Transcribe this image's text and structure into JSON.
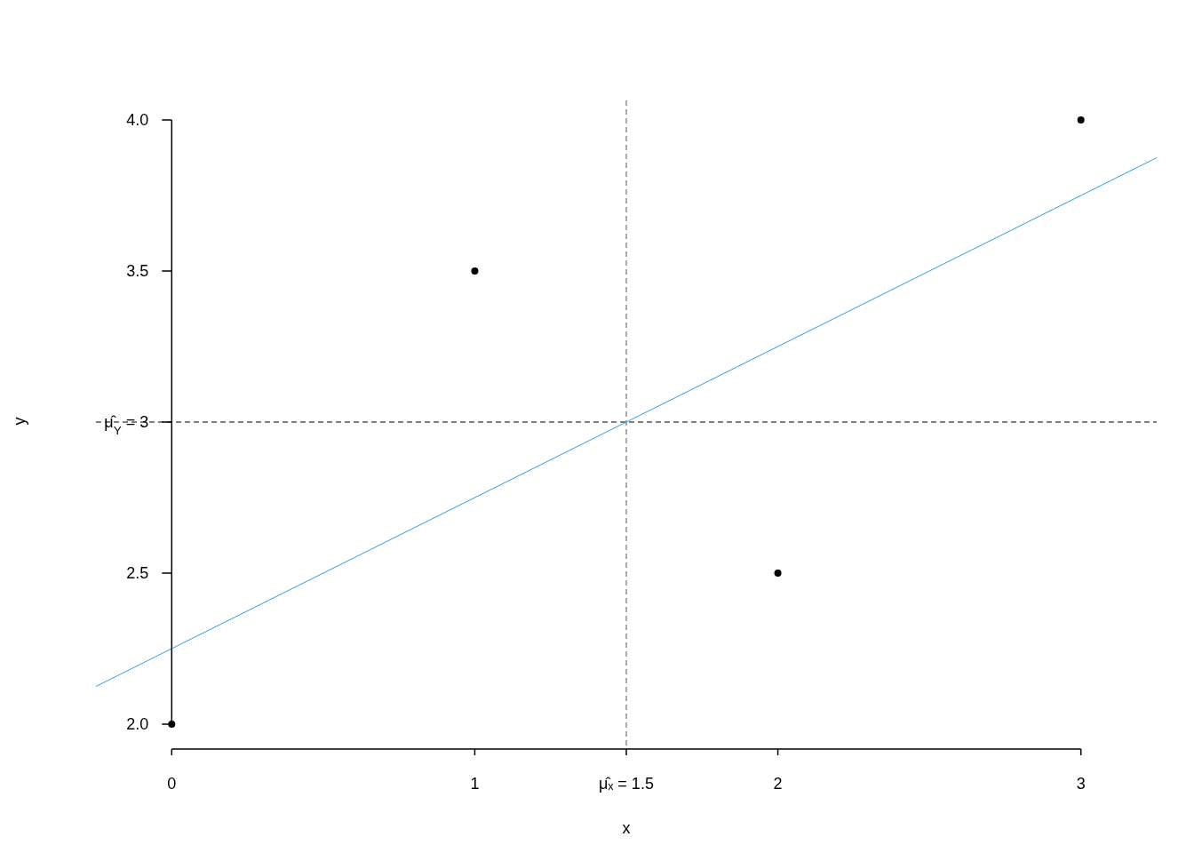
{
  "chart_data": {
    "type": "scatter",
    "xlabel": "x",
    "ylabel": "y",
    "xlim": [
      -0.25,
      3.25
    ],
    "ylim": [
      2,
      4
    ],
    "xticks": [
      0,
      1,
      {
        "value": 1.5,
        "label": "μ̂ₓ = 1.5"
      },
      2,
      3
    ],
    "yticks": [
      {
        "value": 2,
        "label": "2.0"
      },
      2.5,
      {
        "value": 3,
        "label": "μ̂$_{Y}$ = 3"
      },
      3.5,
      {
        "value": 4,
        "label": "4.0"
      }
    ],
    "grid": false,
    "marker": "circle",
    "series": [
      {
        "color": "#000000",
        "x": [
          0,
          1,
          2,
          3
        ],
        "values": [
          2,
          3.5,
          2.5,
          4
        ]
      },
      {
        "type": "line",
        "color": "#2a9de8",
        "line_style": "solid",
        "marker": "none",
        "x": [
          -0.25,
          3.25
        ],
        "values": [
          2.125,
          3.875
        ]
      }
    ],
    "ref_lines": [
      {
        "axis": "x",
        "value": 1.5,
        "color": "#555555",
        "line_style": "dashed"
      },
      {
        "axis": "y",
        "value": 3,
        "color": "#000000",
        "line_style": "dashed"
      }
    ]
  }
}
